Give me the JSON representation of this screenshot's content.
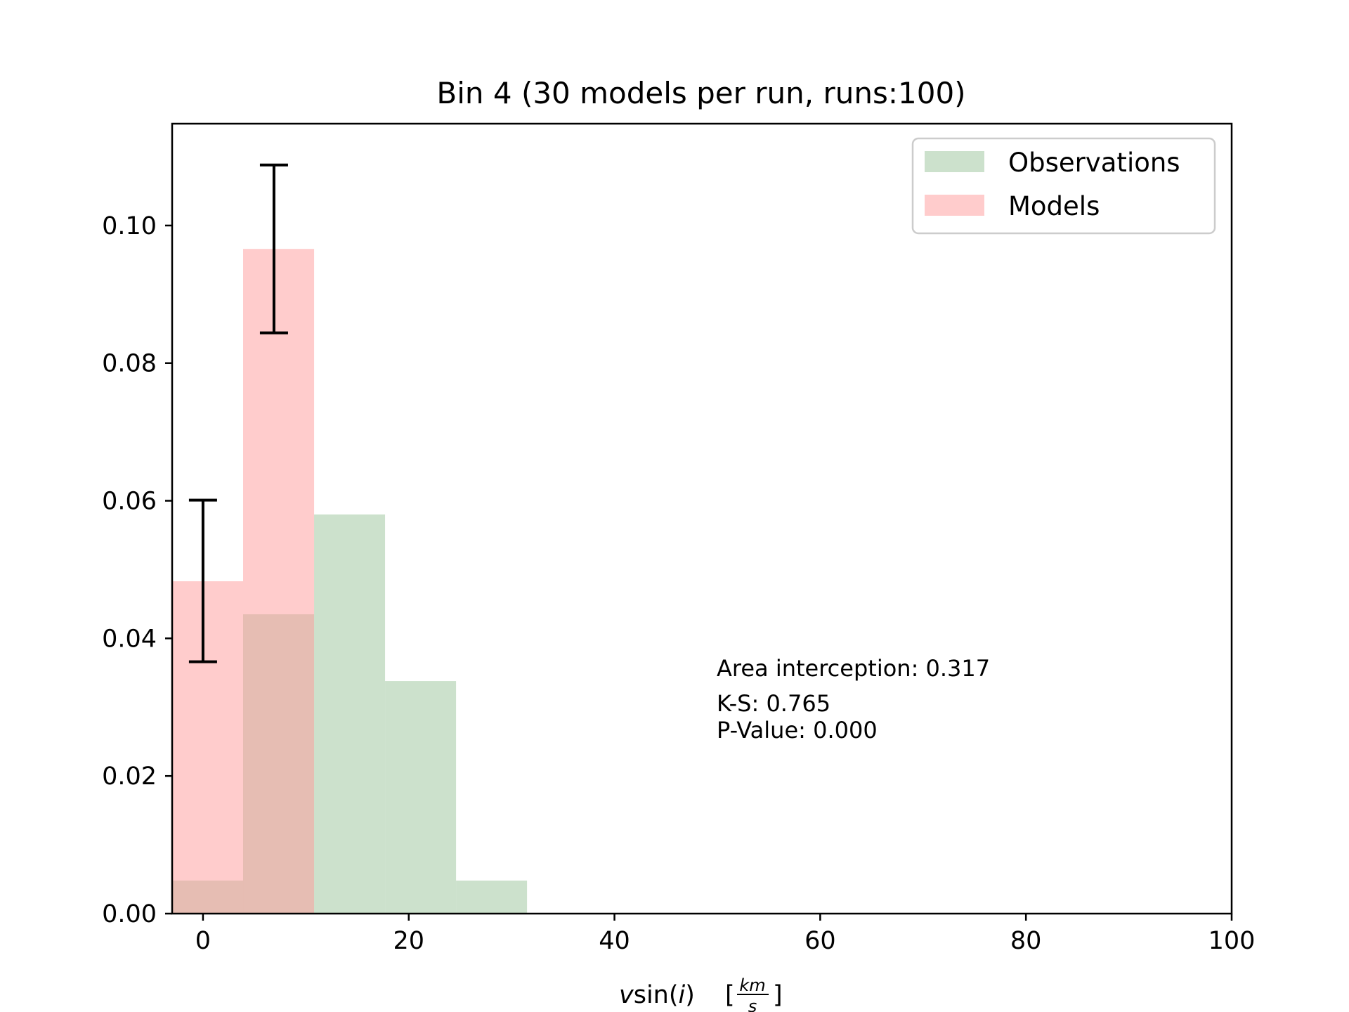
{
  "chart_data": {
    "type": "bar",
    "title": "Bin 4 (30 models per run, runs:100)",
    "xlabel_parts": {
      "v": "v",
      "sin": "sin(",
      "i": "i",
      "close": ")",
      "lbracket": "[",
      "num": "km",
      "den": "s",
      "rbracket": "]"
    },
    "ylabel": "",
    "xlim": [
      -3,
      100
    ],
    "ylim": [
      0,
      0.1148
    ],
    "xticks": [
      0,
      20,
      40,
      60,
      80,
      100
    ],
    "yticks": [
      0.0,
      0.02,
      0.04,
      0.06,
      0.08,
      0.1
    ],
    "bin_edges": [
      -3.0,
      3.9,
      10.8,
      17.7,
      24.6,
      31.5,
      38.4,
      45.3,
      52.2,
      59.1,
      66.0,
      72.9,
      79.8,
      86.7,
      93.6,
      100.5
    ],
    "series": [
      {
        "name": "Observations",
        "color": "#8fbc8f",
        "alpha": 0.45,
        "values": [
          0.0048,
          0.0435,
          0.058,
          0.0338,
          0.0048,
          0,
          0,
          0,
          0,
          0,
          0,
          0,
          0,
          0,
          0
        ]
      },
      {
        "name": "Models",
        "color": "#ff9999",
        "alpha": 0.5,
        "values": [
          0.0483,
          0.0966,
          0,
          0,
          0,
          0,
          0,
          0,
          0,
          0,
          0,
          0,
          0,
          0,
          0
        ]
      }
    ],
    "error_bars": [
      {
        "x": 0.0,
        "low": 0.0366,
        "high": 0.0601
      },
      {
        "x": 6.9,
        "low": 0.0844,
        "high": 0.1088
      }
    ],
    "annotations": {
      "area": "Area interception: 0.317",
      "ks": "K-S: 0.765",
      "pvalue": "P-Value: 0.000"
    },
    "legend": {
      "position": "upper right",
      "items": [
        "Observations",
        "Models"
      ]
    }
  }
}
